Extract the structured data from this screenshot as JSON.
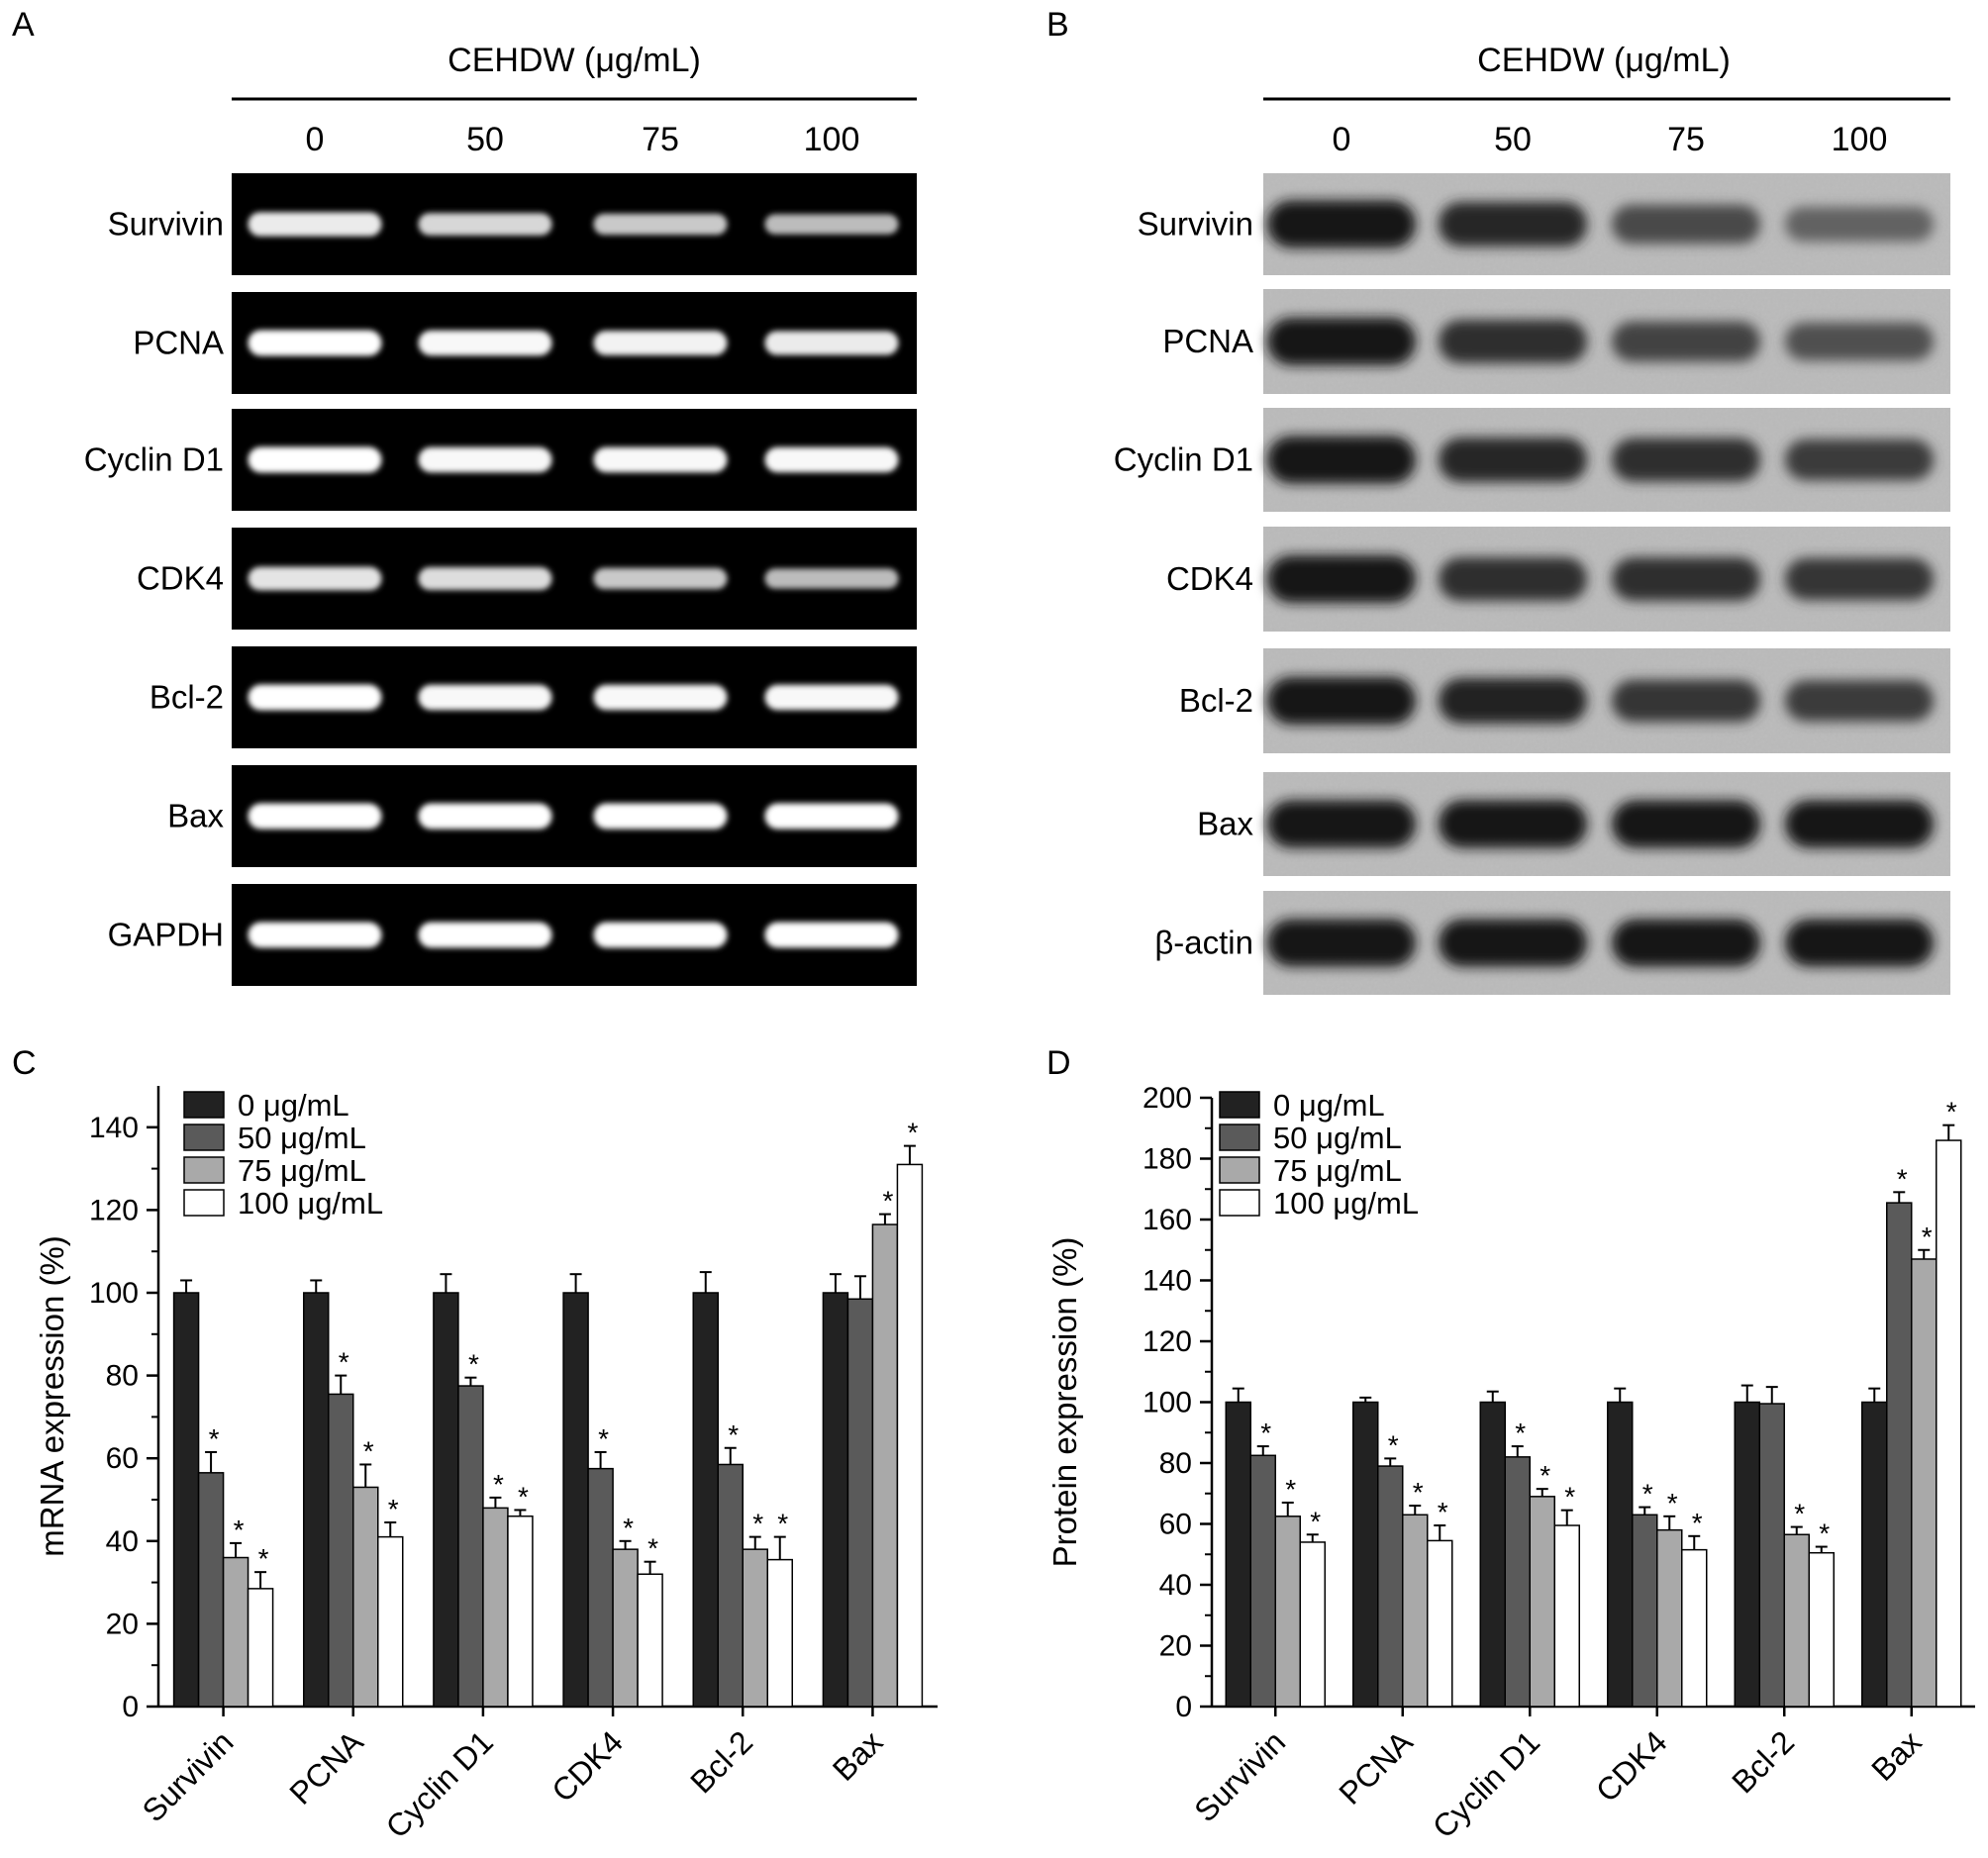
{
  "panels": {
    "A": {
      "letter": "A",
      "header": "CEHDW (μg/mL)",
      "lanes": [
        "0",
        "50",
        "75",
        "100"
      ],
      "genes": [
        "Survivin",
        "PCNA",
        "Cyclin D1",
        "CDK4",
        "Bcl-2",
        "Bax",
        "GAPDH"
      ],
      "band_intensity": [
        [
          0.85,
          0.7,
          0.6,
          0.5
        ],
        [
          1.0,
          0.95,
          0.9,
          0.85
        ],
        [
          1.0,
          0.95,
          0.95,
          0.95
        ],
        [
          0.8,
          0.75,
          0.6,
          0.5
        ],
        [
          1.0,
          0.95,
          0.95,
          0.95
        ],
        [
          1.0,
          1.0,
          1.0,
          1.0
        ],
        [
          1.0,
          1.0,
          1.0,
          1.0
        ]
      ]
    },
    "B": {
      "letter": "B",
      "header": "CEHDW (μg/mL)",
      "lanes": [
        "0",
        "50",
        "75",
        "100"
      ],
      "genes": [
        "Survivin",
        "PCNA",
        "Cyclin D1",
        "CDK4",
        "Bcl-2",
        "Bax",
        "β-actin"
      ],
      "band_intensity": [
        [
          1.0,
          0.85,
          0.6,
          0.4
        ],
        [
          1.0,
          0.8,
          0.65,
          0.55
        ],
        [
          1.0,
          0.85,
          0.8,
          0.7
        ],
        [
          1.0,
          0.8,
          0.8,
          0.75
        ],
        [
          1.0,
          0.9,
          0.75,
          0.7
        ],
        [
          1.0,
          1.0,
          1.0,
          1.0
        ],
        [
          1.0,
          1.0,
          1.0,
          1.0
        ]
      ]
    }
  },
  "chart_data": [
    {
      "panel": "C",
      "type": "bar",
      "ylabel": "mRNA expression (%)",
      "ylim": [
        0,
        150
      ],
      "yticks": [
        0,
        20,
        40,
        60,
        80,
        100,
        120,
        140
      ],
      "categories": [
        "Survivin",
        "PCNA",
        "Cyclin D1",
        "CDK4",
        "Bcl-2",
        "Bax"
      ],
      "legend_position": "top-left",
      "colors": [
        "#222222",
        "#5a5a5a",
        "#a9a9a9",
        "#ffffff"
      ],
      "series": [
        {
          "name": "0 μg/mL",
          "values": [
            100,
            100,
            100,
            100,
            100,
            100
          ],
          "errors": [
            3,
            3,
            4.5,
            4.5,
            5,
            4.5
          ],
          "significant": [
            false,
            false,
            false,
            false,
            false,
            false
          ]
        },
        {
          "name": "50 μg/mL",
          "values": [
            56.5,
            75.5,
            77.5,
            57.5,
            58.5,
            98.5
          ],
          "errors": [
            5,
            4.5,
            2,
            4,
            4,
            5.5
          ],
          "significant": [
            true,
            true,
            true,
            true,
            true,
            false
          ]
        },
        {
          "name": "75 μg/mL",
          "values": [
            36,
            53,
            48,
            38,
            38,
            116.5
          ],
          "errors": [
            3.5,
            5.5,
            2.5,
            2,
            3,
            2.5
          ],
          "significant": [
            true,
            true,
            true,
            true,
            true,
            true
          ]
        },
        {
          "name": "100 μg/mL",
          "values": [
            28.5,
            41,
            46,
            32,
            35.5,
            131
          ],
          "errors": [
            4,
            3.5,
            1.5,
            3,
            5.5,
            4.5
          ],
          "significant": [
            true,
            true,
            true,
            true,
            true,
            true
          ]
        }
      ],
      "significance_marker": "*"
    },
    {
      "panel": "D",
      "type": "bar",
      "ylabel": "Protein expression (%)",
      "ylim": [
        0,
        200
      ],
      "yticks": [
        0,
        20,
        40,
        60,
        80,
        100,
        120,
        140,
        160,
        180,
        200
      ],
      "categories": [
        "Survivin",
        "PCNA",
        "Cyclin D1",
        "CDK4",
        "Bcl-2",
        "Bax"
      ],
      "legend_position": "top-left",
      "colors": [
        "#222222",
        "#5a5a5a",
        "#a9a9a9",
        "#ffffff"
      ],
      "series": [
        {
          "name": "0 μg/mL",
          "values": [
            100,
            100,
            100,
            100,
            100,
            100
          ],
          "errors": [
            4.5,
            1.5,
            3.5,
            4.5,
            5.5,
            4.5
          ],
          "significant": [
            false,
            false,
            false,
            false,
            false,
            false
          ]
        },
        {
          "name": "50 μg/mL",
          "values": [
            82.5,
            79,
            82,
            63,
            99.5,
            165.5
          ],
          "errors": [
            3,
            2.5,
            3.5,
            2.5,
            5.5,
            3.5
          ],
          "significant": [
            true,
            true,
            true,
            true,
            false,
            true
          ]
        },
        {
          "name": "75 μg/mL",
          "values": [
            62.5,
            63,
            69,
            58,
            56.5,
            147
          ],
          "errors": [
            4.5,
            3,
            2.5,
            4.5,
            2.5,
            3
          ],
          "significant": [
            true,
            true,
            true,
            true,
            true,
            true
          ]
        },
        {
          "name": "100 μg/mL",
          "values": [
            54,
            54.5,
            59.5,
            51.5,
            50.5,
            186
          ],
          "errors": [
            2.5,
            5,
            5,
            4.5,
            2,
            5
          ],
          "significant": [
            true,
            true,
            true,
            true,
            true,
            true
          ]
        }
      ],
      "significance_marker": "*"
    }
  ],
  "panel_letters": {
    "C": "C",
    "D": "D"
  }
}
